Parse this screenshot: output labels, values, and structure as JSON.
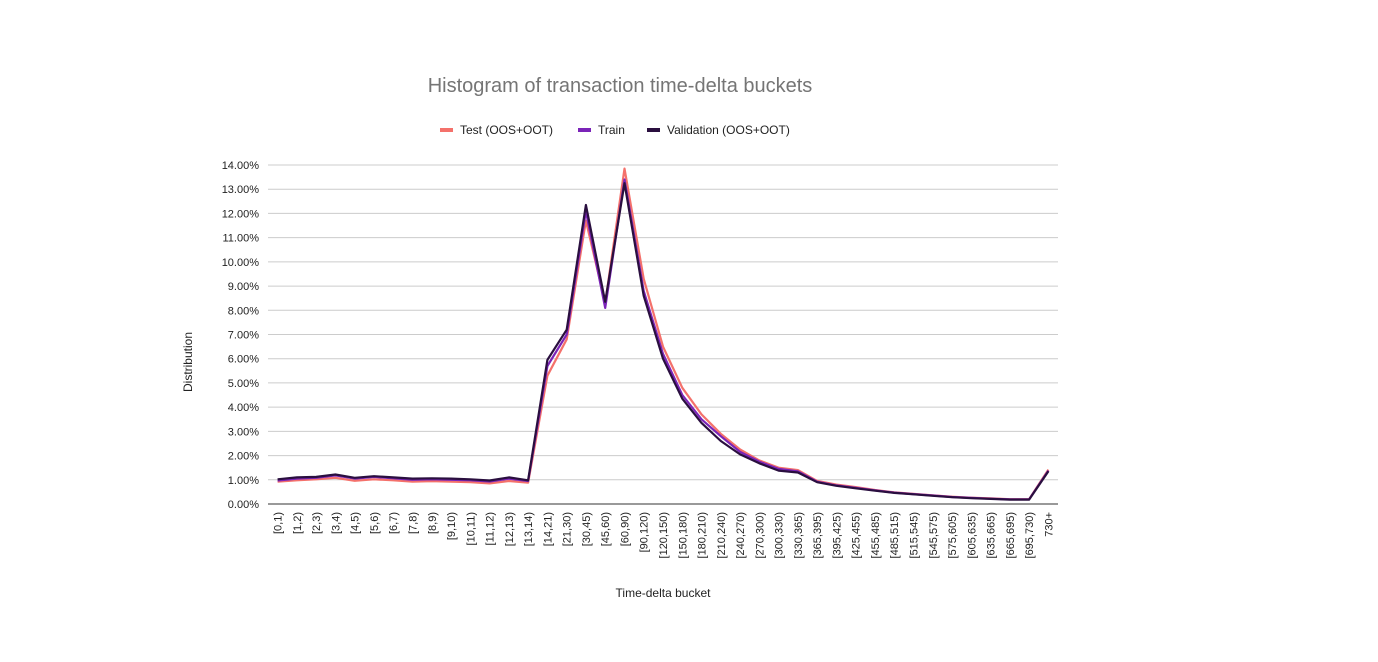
{
  "chart_data": {
    "type": "line",
    "title": "Histogram of transaction time-delta buckets",
    "xlabel": "Time-delta bucket",
    "ylabel": "Distribution",
    "ylim": [
      0,
      14
    ],
    "yticks": [
      "0.00%",
      "1.00%",
      "2.00%",
      "3.00%",
      "4.00%",
      "5.00%",
      "6.00%",
      "7.00%",
      "8.00%",
      "9.00%",
      "10.00%",
      "11.00%",
      "12.00%",
      "13.00%",
      "14.00%"
    ],
    "grid": true,
    "legend_position": "top",
    "categories": [
      "[0,1)",
      "[1,2)",
      "[2,3)",
      "[3,4)",
      "[4,5)",
      "[5,6)",
      "[6,7)",
      "[7,8)",
      "[8,9)",
      "[9,10)",
      "[10,11)",
      "[11,12)",
      "[12,13)",
      "[13,14)",
      "[14,21)",
      "[21,30)",
      "[30,45)",
      "[45,60)",
      "[60,90)",
      "[90,120)",
      "[120,150)",
      "[150,180)",
      "[180,210)",
      "[210,240)",
      "[240,270)",
      "[270,300)",
      "[300,330)",
      "[330,365)",
      "[365,395)",
      "[395,425)",
      "[425,455)",
      "[455,485)",
      "[485,515)",
      "[515,545)",
      "[545,575)",
      "[575,605)",
      "[605,635)",
      "[635,665)",
      "[665,695)",
      "[695,730)",
      "730+"
    ],
    "series": [
      {
        "name": "Test (OOS+OOT)",
        "color": "#f4716b",
        "values": [
          0.92,
          0.98,
          1.02,
          1.08,
          0.96,
          1.02,
          0.98,
          0.92,
          0.94,
          0.92,
          0.9,
          0.85,
          0.95,
          0.88,
          5.3,
          6.8,
          11.7,
          8.3,
          13.85,
          9.3,
          6.5,
          4.8,
          3.7,
          2.9,
          2.25,
          1.8,
          1.5,
          1.4,
          0.95,
          0.8,
          0.7,
          0.58,
          0.48,
          0.42,
          0.36,
          0.3,
          0.26,
          0.23,
          0.2,
          0.2,
          1.42
        ]
      },
      {
        "name": "Train",
        "color": "#7b24b8",
        "values": [
          0.97,
          1.05,
          1.08,
          1.18,
          1.05,
          1.12,
          1.06,
          1.0,
          1.02,
          1.0,
          0.98,
          0.93,
          1.05,
          0.95,
          5.7,
          7.0,
          12.1,
          8.1,
          13.4,
          8.8,
          6.2,
          4.5,
          3.5,
          2.8,
          2.15,
          1.75,
          1.45,
          1.35,
          0.92,
          0.77,
          0.67,
          0.56,
          0.47,
          0.41,
          0.35,
          0.29,
          0.25,
          0.22,
          0.19,
          0.19,
          1.38
        ]
      },
      {
        "name": "Validation (OOS+OOT)",
        "color": "#2a0f3f",
        "values": [
          1.02,
          1.1,
          1.12,
          1.22,
          1.08,
          1.15,
          1.1,
          1.05,
          1.06,
          1.05,
          1.02,
          0.97,
          1.1,
          0.98,
          5.95,
          7.2,
          12.35,
          8.35,
          13.25,
          8.6,
          6.0,
          4.35,
          3.35,
          2.6,
          2.05,
          1.68,
          1.38,
          1.3,
          0.9,
          0.75,
          0.65,
          0.55,
          0.46,
          0.4,
          0.34,
          0.28,
          0.24,
          0.21,
          0.18,
          0.18,
          1.35
        ]
      }
    ]
  }
}
